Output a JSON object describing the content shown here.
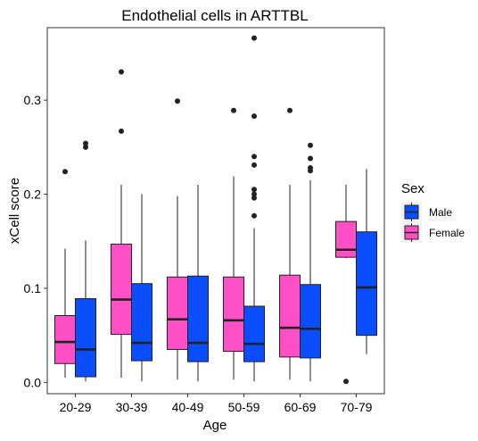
{
  "chart_data": {
    "type": "boxplot",
    "title": "Endothelial cells in ARTTBL",
    "xlabel": "Age",
    "ylabel": "xCell score",
    "categories": [
      "20-29",
      "30-39",
      "40-49",
      "50-59",
      "60-69",
      "70-79"
    ],
    "ylim": [
      -0.012,
      0.377
    ],
    "yticks": [
      0.0,
      0.1,
      0.2,
      0.3
    ],
    "ytick_labels": [
      "0.0",
      "0.1",
      "0.2",
      "0.3"
    ],
    "grid": false,
    "legend": {
      "title": "Sex",
      "placement": "right",
      "entries": [
        {
          "name": "Male",
          "color": "#0a4dfd"
        },
        {
          "name": "Female",
          "color": "#ff4fc6"
        }
      ]
    },
    "series": [
      {
        "name": "Female",
        "color": "#ff4fc6",
        "boxes": [
          {
            "category": "20-29",
            "whisker_low": 0.005,
            "q1": 0.02,
            "median": 0.043,
            "q3": 0.071,
            "whisker_high": 0.142,
            "outliers": [
              0.224
            ]
          },
          {
            "category": "30-39",
            "whisker_low": 0.005,
            "q1": 0.051,
            "median": 0.088,
            "q3": 0.147,
            "whisker_high": 0.21,
            "outliers": [
              0.33,
              0.267
            ]
          },
          {
            "category": "40-49",
            "whisker_low": 0.003,
            "q1": 0.035,
            "median": 0.067,
            "q3": 0.112,
            "whisker_high": 0.198,
            "outliers": [
              0.299
            ]
          },
          {
            "category": "50-59",
            "whisker_low": 0.003,
            "q1": 0.033,
            "median": 0.066,
            "q3": 0.112,
            "whisker_high": 0.219,
            "outliers": [
              0.289
            ]
          },
          {
            "category": "60-69",
            "whisker_low": 0.003,
            "q1": 0.027,
            "median": 0.058,
            "q3": 0.114,
            "whisker_high": 0.21,
            "outliers": [
              0.289
            ]
          },
          {
            "category": "70-79",
            "whisker_low": 0.132,
            "q1": 0.133,
            "median": 0.141,
            "q3": 0.171,
            "whisker_high": 0.21,
            "outliers": [
              0.001
            ]
          }
        ]
      },
      {
        "name": "Male",
        "color": "#0a4dfd",
        "boxes": [
          {
            "category": "20-29",
            "whisker_low": 0.001,
            "q1": 0.006,
            "median": 0.035,
            "q3": 0.089,
            "whisker_high": 0.151,
            "outliers": [
              0.254,
              0.25
            ]
          },
          {
            "category": "30-39",
            "whisker_low": 0.001,
            "q1": 0.023,
            "median": 0.042,
            "q3": 0.105,
            "whisker_high": 0.2,
            "outliers": []
          },
          {
            "category": "40-49",
            "whisker_low": 0.001,
            "q1": 0.022,
            "median": 0.042,
            "q3": 0.113,
            "whisker_high": 0.21,
            "outliers": []
          },
          {
            "category": "50-59",
            "whisker_low": 0.001,
            "q1": 0.022,
            "median": 0.041,
            "q3": 0.081,
            "whisker_high": 0.164,
            "outliers": [
              0.366,
              0.283,
              0.24,
              0.231,
              0.205,
              0.2,
              0.196,
              0.177
            ]
          },
          {
            "category": "60-69",
            "whisker_low": 0.001,
            "q1": 0.026,
            "median": 0.057,
            "q3": 0.104,
            "whisker_high": 0.215,
            "outliers": [
              0.252,
              0.238,
              0.228,
              0.225
            ]
          },
          {
            "category": "70-79",
            "whisker_low": 0.03,
            "q1": 0.05,
            "median": 0.101,
            "q3": 0.16,
            "whisker_high": 0.227,
            "outliers": []
          }
        ]
      }
    ]
  }
}
